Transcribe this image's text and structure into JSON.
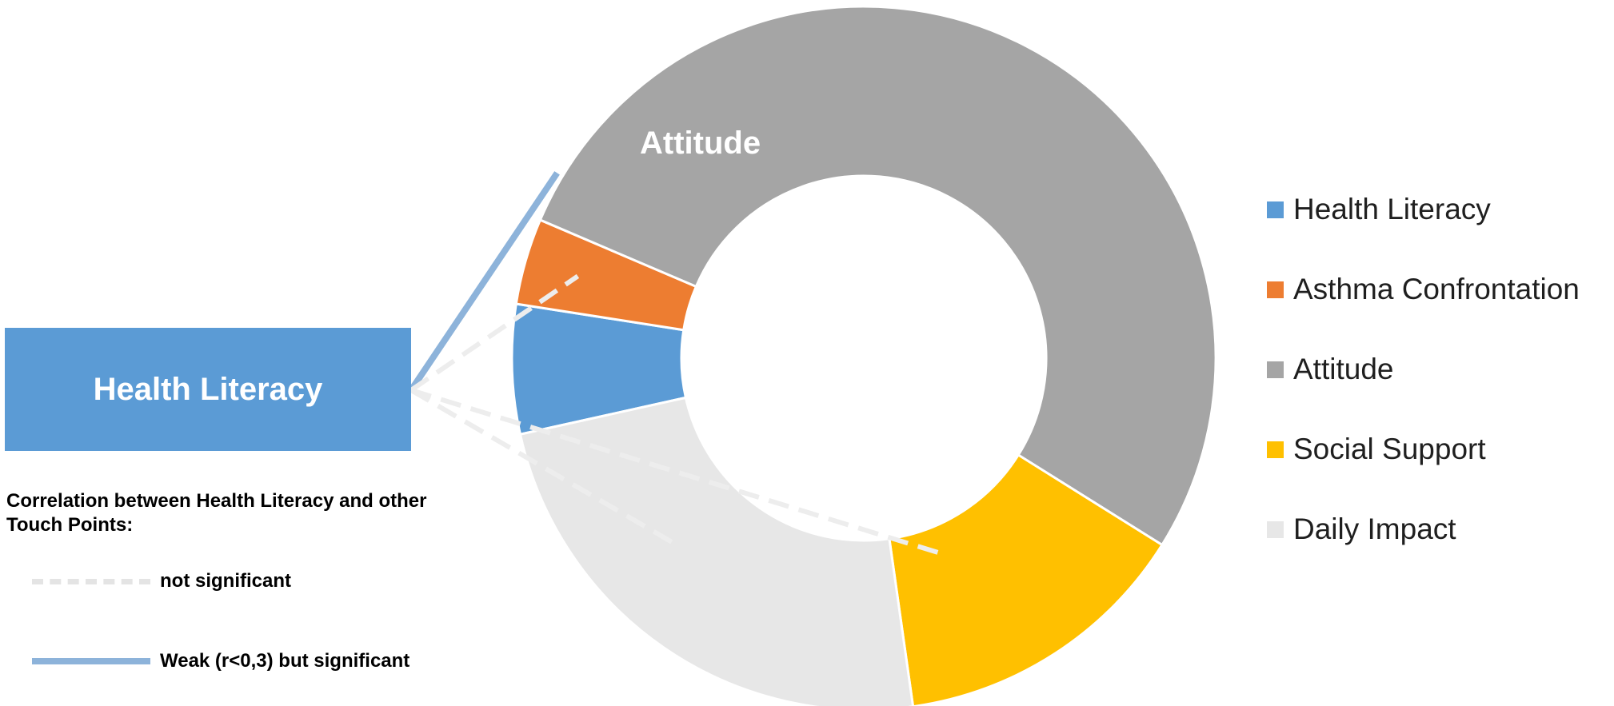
{
  "chart_data": {
    "type": "pie",
    "style": "donut",
    "categories": [
      "Health Literacy",
      "Asthma Confrontation",
      "Attitude",
      "Social Support",
      "Daily Impact"
    ],
    "values": [
      6,
      4,
      53,
      14,
      24
    ],
    "colors": [
      "#5b9bd5",
      "#ed7d31",
      "#a5a5a5",
      "#ffc000",
      "#e7e7e7"
    ],
    "data_labels": [
      {
        "category": "Attitude",
        "text": "Attitude"
      }
    ],
    "legend": {
      "placement": "right",
      "entries": [
        "Health Literacy",
        "Asthma Confrontation",
        "Attitude",
        "Social Support",
        "Daily Impact"
      ]
    },
    "correlations": {
      "from": "Health Literacy",
      "title": "Correlation between Health Literacy and other Touch Points:",
      "types": [
        {
          "style": "dashed",
          "color": "#ededed",
          "label": "not significant"
        },
        {
          "style": "solid",
          "color": "#8db3da",
          "label": "Weak (r<0,3) but significant"
        }
      ],
      "links": [
        {
          "to": "Attitude",
          "type": "solid"
        },
        {
          "to": "Asthma Confrontation",
          "type": "dashed"
        },
        {
          "to": "Social Support",
          "type": "dashed"
        },
        {
          "to": "Daily Impact",
          "type": "dashed"
        }
      ]
    }
  },
  "hl_box": {
    "label": "Health Literacy"
  }
}
